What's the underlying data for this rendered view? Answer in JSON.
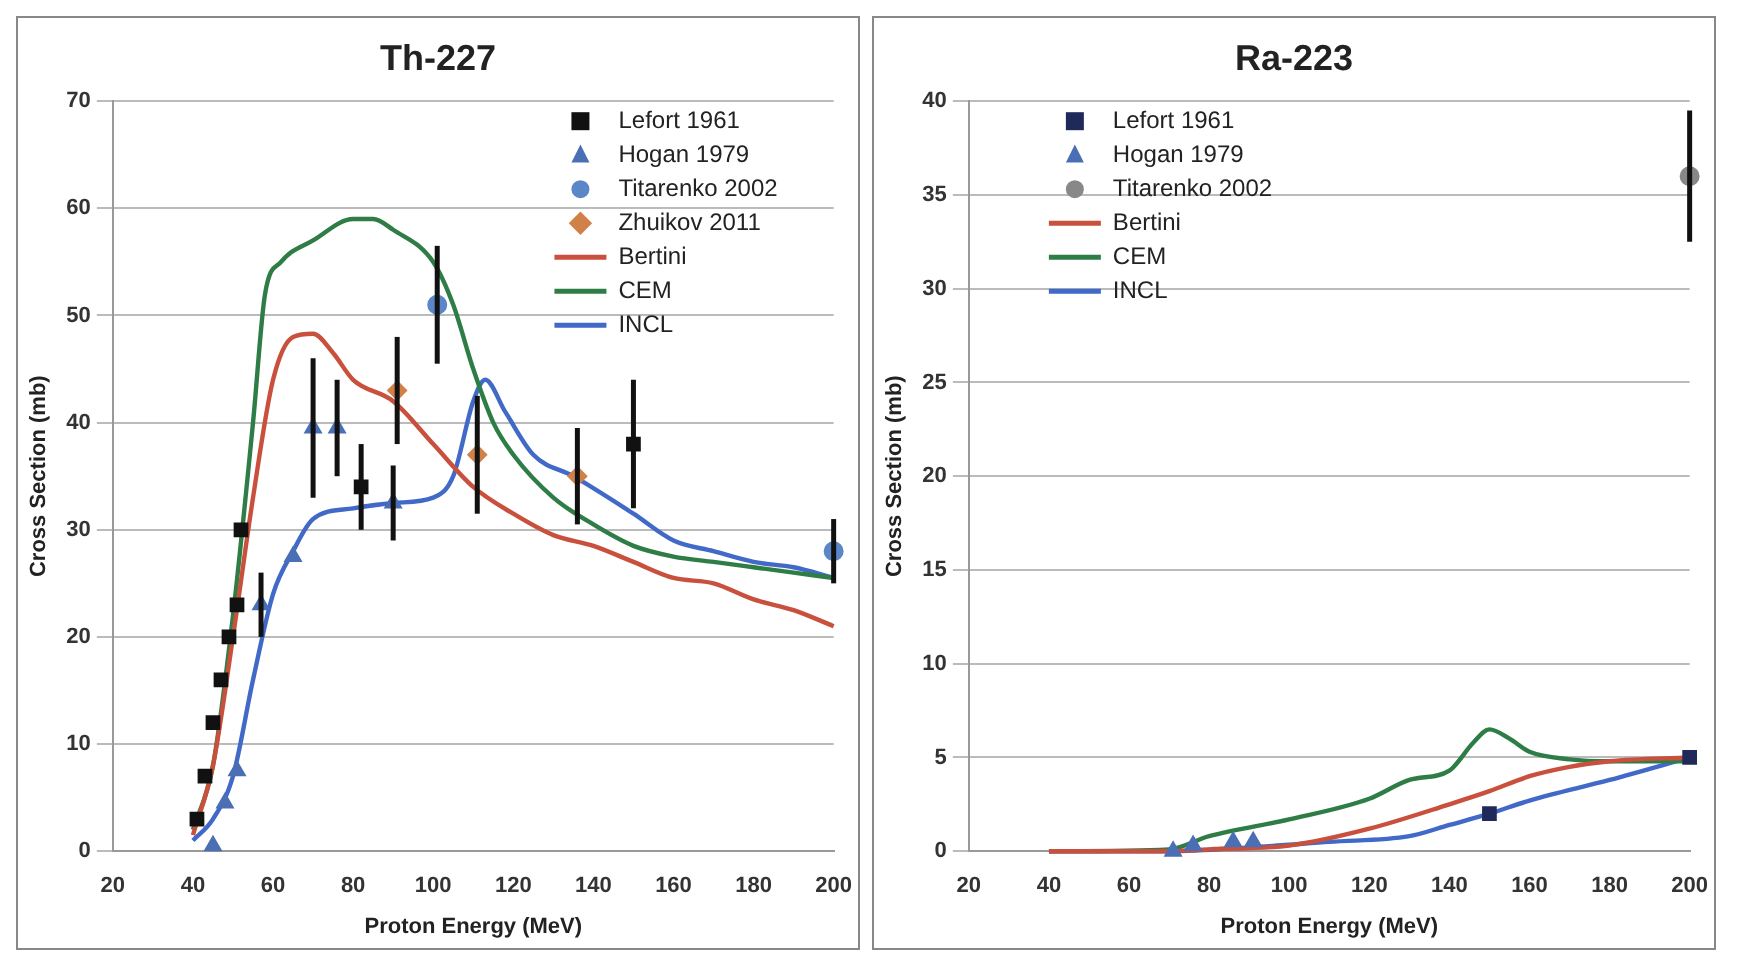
{
  "chart_data": [
    {
      "type": "scatter",
      "title": "Th-227",
      "xlabel": "Proton Energy (MeV)",
      "ylabel": "Cross Section (mb)",
      "xlim": [
        20,
        200
      ],
      "xticks": [
        20,
        40,
        60,
        80,
        100,
        120,
        140,
        160,
        180,
        200
      ],
      "ylim": [
        0,
        70
      ],
      "yticks": [
        0,
        10,
        20,
        30,
        40,
        50,
        60,
        70
      ],
      "grid": "y",
      "legend": "top right",
      "series": [
        {
          "name": "Lefort 1961",
          "marker": "square",
          "color": "#111111",
          "x": [
            41,
            43,
            45,
            47,
            49,
            51,
            52,
            82,
            150
          ],
          "values": [
            3,
            7,
            12,
            16,
            20,
            23,
            30,
            34,
            38
          ],
          "errors": [
            null,
            null,
            null,
            null,
            null,
            null,
            null,
            4,
            6
          ]
        },
        {
          "name": "Hogan 1979",
          "marker": "triangle",
          "color": "#4a6fb5",
          "x": [
            45,
            48,
            51,
            57,
            65,
            70,
            76,
            90
          ],
          "values": [
            0.5,
            4.5,
            7.5,
            23,
            27.5,
            39.5,
            39.5,
            32.5
          ],
          "errors": [
            null,
            null,
            null,
            3,
            null,
            6.5,
            4.5,
            3.5
          ]
        },
        {
          "name": "Titarenko 2002",
          "marker": "circle",
          "color": "#5b87c9",
          "x": [
            101,
            200
          ],
          "values": [
            51,
            28
          ],
          "errors": [
            5.5,
            3
          ]
        },
        {
          "name": "Zhuikov 2011",
          "marker": "diamond",
          "color": "#d2804a",
          "x": [
            91,
            111,
            136
          ],
          "values": [
            43,
            37,
            35
          ],
          "errors": [
            5,
            5.5,
            4.5
          ]
        },
        {
          "name": "Bertini",
          "type": "line",
          "color": "#c8503c",
          "x": [
            40,
            45,
            50,
            55,
            60,
            65,
            70,
            75,
            80,
            90,
            100,
            110,
            120,
            130,
            140,
            150,
            160,
            170,
            180,
            190,
            200
          ],
          "values": [
            1.5,
            8,
            20,
            33,
            44,
            48,
            48.3,
            46.5,
            44,
            42,
            38,
            34,
            31.5,
            29.5,
            28.5,
            27,
            25.5,
            25,
            23.5,
            22.5,
            21
          ]
        },
        {
          "name": "CEM",
          "type": "line",
          "color": "#2e7d46",
          "x": [
            40,
            45,
            50,
            55,
            58,
            62,
            70,
            80,
            85,
            90,
            100,
            105,
            110,
            115,
            120,
            130,
            140,
            150,
            160,
            170,
            180,
            190,
            200
          ],
          "values": [
            2,
            8,
            22,
            40,
            52,
            55,
            57,
            59,
            59,
            58,
            55,
            51,
            45,
            40,
            37,
            33,
            30.5,
            28.5,
            27.5,
            27,
            26.5,
            26,
            25.5
          ]
        },
        {
          "name": "INCL",
          "type": "line",
          "color": "#4169c8",
          "x": [
            40,
            45,
            50,
            55,
            60,
            65,
            70,
            80,
            90,
            100,
            105,
            110,
            113,
            118,
            125,
            135,
            150,
            160,
            170,
            180,
            190,
            200
          ],
          "values": [
            1,
            3,
            7,
            16,
            24,
            28,
            31,
            32,
            32.5,
            33,
            35,
            42,
            44,
            41,
            37,
            35,
            31.5,
            29,
            28,
            27,
            26.5,
            25.5
          ]
        }
      ]
    },
    {
      "type": "scatter",
      "title": "Ra-223",
      "xlabel": "Proton Energy (MeV)",
      "ylabel": "Cross Section (mb)",
      "xlim": [
        20,
        200
      ],
      "xticks": [
        20,
        40,
        60,
        80,
        100,
        120,
        140,
        160,
        180,
        200
      ],
      "ylim": [
        0,
        40
      ],
      "yticks": [
        0,
        5,
        10,
        15,
        20,
        25,
        30,
        35,
        40
      ],
      "grid": "y",
      "legend": "top left",
      "series": [
        {
          "name": "Lefort 1961",
          "marker": "square",
          "color": "#1f2a5a",
          "x": [
            150,
            200
          ],
          "values": [
            2,
            5
          ]
        },
        {
          "name": "Hogan 1979",
          "marker": "triangle",
          "color": "#4a6fb5",
          "x": [
            71,
            76,
            86,
            91
          ],
          "values": [
            0,
            0.3,
            0.5,
            0.5
          ]
        },
        {
          "name": "Titarenko 2002",
          "marker": "circle",
          "color": "#888888",
          "x": [
            200
          ],
          "values": [
            36
          ],
          "errors": [
            3.5
          ]
        },
        {
          "name": "Bertini",
          "type": "line",
          "color": "#c8503c",
          "x": [
            40,
            70,
            80,
            100,
            120,
            140,
            150,
            160,
            170,
            180,
            200
          ],
          "values": [
            0,
            0,
            0.1,
            0.3,
            1.2,
            2.5,
            3.2,
            4,
            4.5,
            4.8,
            5
          ]
        },
        {
          "name": "CEM",
          "type": "line",
          "color": "#2e7d46",
          "x": [
            40,
            70,
            80,
            100,
            120,
            130,
            140,
            146,
            150,
            155,
            160,
            170,
            180,
            200
          ],
          "values": [
            0,
            0.1,
            0.8,
            1.7,
            2.8,
            3.8,
            4.3,
            5.8,
            6.5,
            6,
            5.3,
            4.9,
            4.8,
            4.8
          ]
        },
        {
          "name": "INCL",
          "type": "line",
          "color": "#4169c8",
          "x": [
            40,
            70,
            90,
            110,
            130,
            140,
            150,
            160,
            180,
            200
          ],
          "values": [
            0,
            0,
            0.2,
            0.5,
            0.8,
            1.4,
            2,
            2.7,
            3.8,
            5
          ]
        }
      ]
    }
  ]
}
